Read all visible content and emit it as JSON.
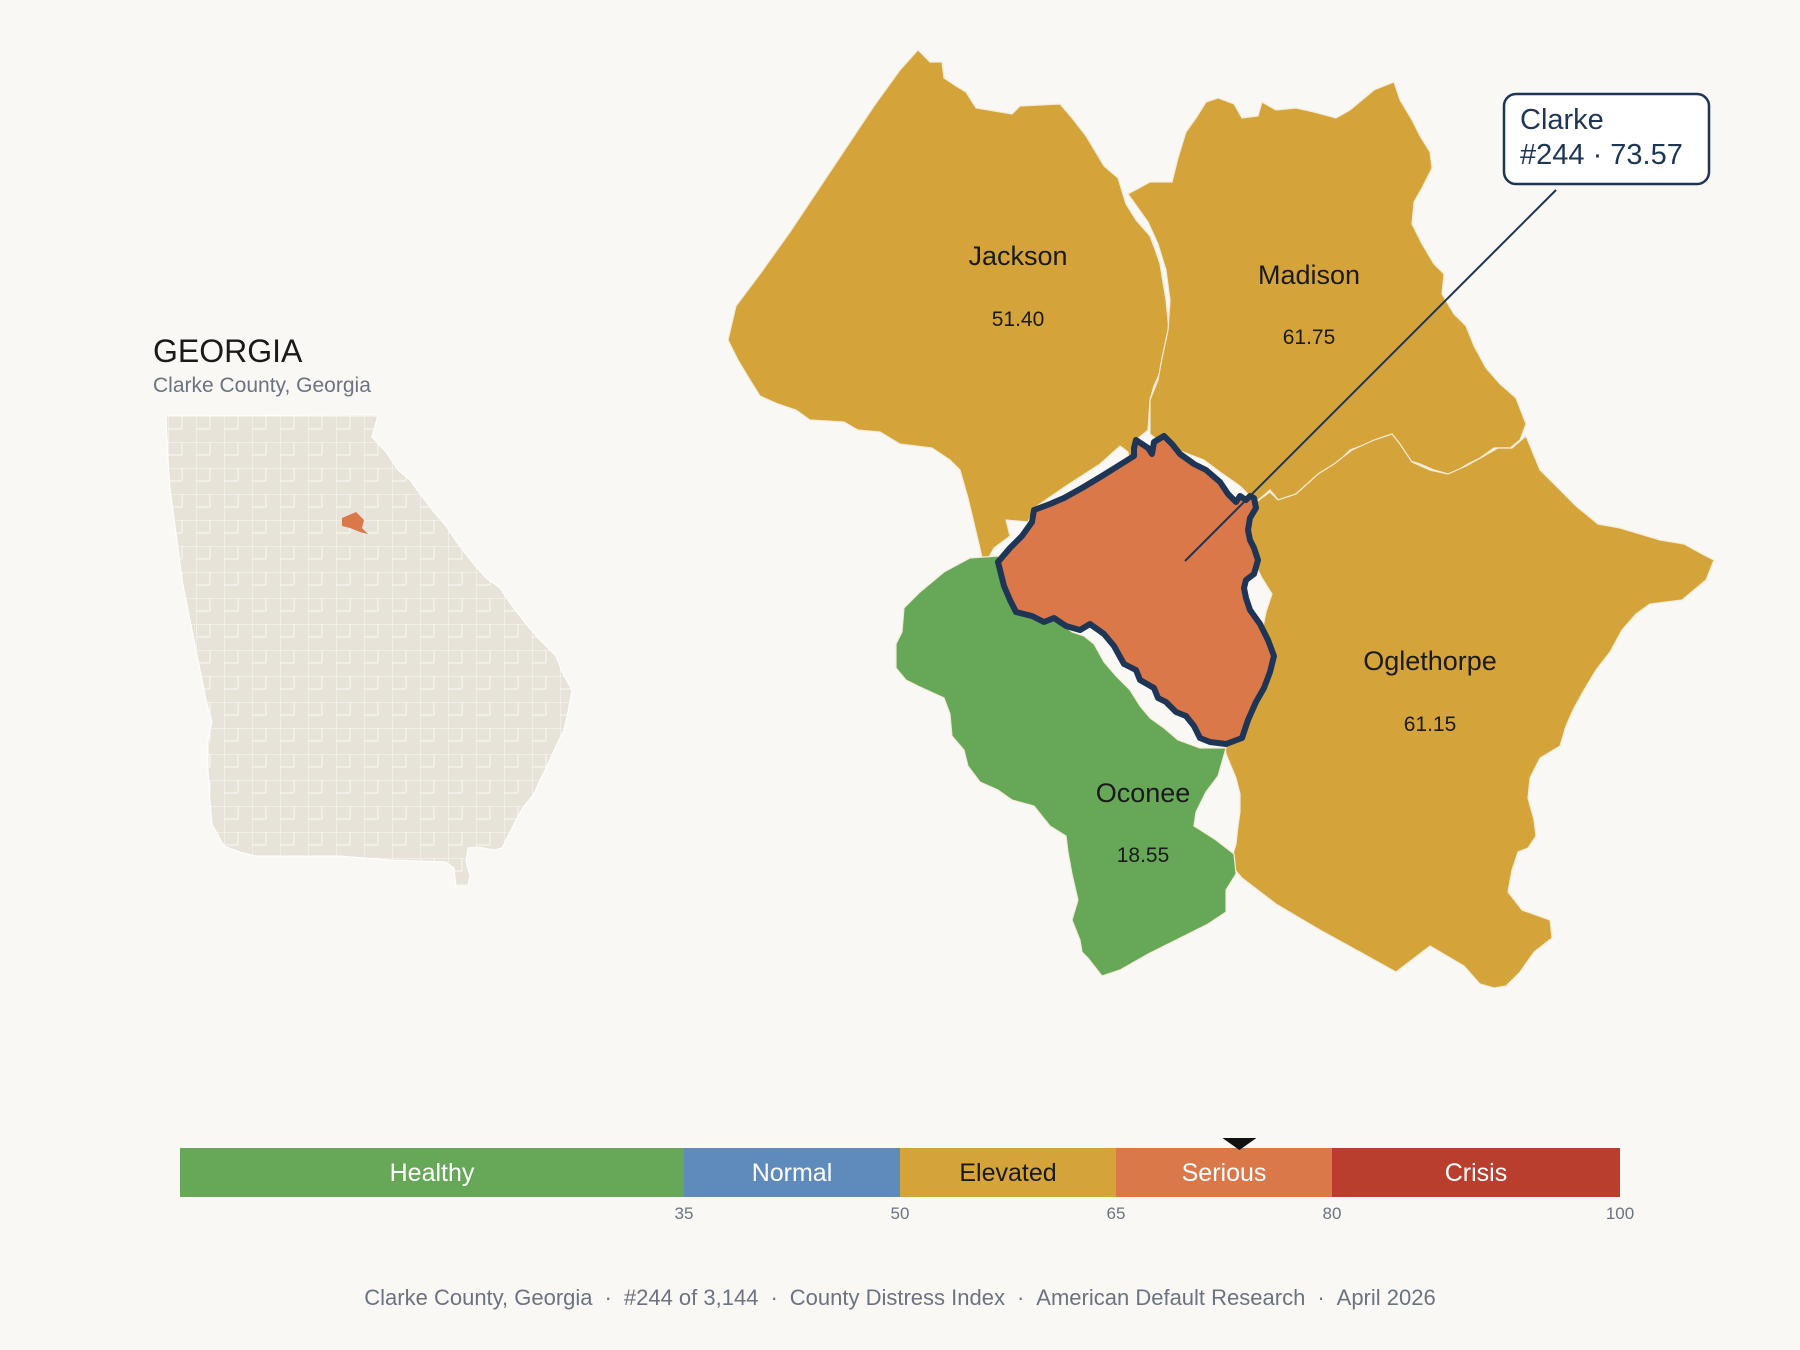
{
  "state": {
    "title": "GEORGIA",
    "subtitle": "Clarke County, Georgia"
  },
  "counties": [
    {
      "name": "Jackson",
      "score": "51.40",
      "color": "#d4a43a"
    },
    {
      "name": "Madison",
      "score": "61.75",
      "color": "#d4a43a"
    },
    {
      "name": "Oglethorpe",
      "score": "61.15",
      "color": "#d4a43a"
    },
    {
      "name": "Oconee",
      "score": "18.55",
      "color": "#67a758"
    },
    {
      "name": "Clarke",
      "score": "73.57",
      "color": "#db784a",
      "highlighted": true
    }
  ],
  "callout": {
    "name": "Clarke",
    "detail": "#244 · 73.57"
  },
  "colors": {
    "highlight_outline": "#1e3556",
    "background": "#f9f8f5",
    "state_fill": "#e8e3d8"
  },
  "scale": {
    "min": 0,
    "max": 100,
    "marker_value": 73.57,
    "bands": [
      {
        "label": "Healthy",
        "from": 0,
        "to": 35,
        "color": "#67a758",
        "text_color": "#ffffff"
      },
      {
        "label": "Normal",
        "from": 35,
        "to": 50,
        "color": "#5e8bbb",
        "text_color": "#ffffff"
      },
      {
        "label": "Elevated",
        "from": 50,
        "to": 65,
        "color": "#d4a43a",
        "text_color": "#1a1a1a"
      },
      {
        "label": "Serious",
        "from": 65,
        "to": 80,
        "color": "#db784a",
        "text_color": "#ffffff"
      },
      {
        "label": "Crisis",
        "from": 80,
        "to": 100,
        "color": "#ba3e2d",
        "text_color": "#ffffff"
      }
    ],
    "ticks": [
      "35",
      "50",
      "65",
      "80",
      "100"
    ]
  },
  "footer": {
    "parts": [
      "Clarke County, Georgia",
      "#244 of 3,144",
      "County Distress Index",
      "American Default Research",
      "April 2026"
    ],
    "separator": "·"
  }
}
